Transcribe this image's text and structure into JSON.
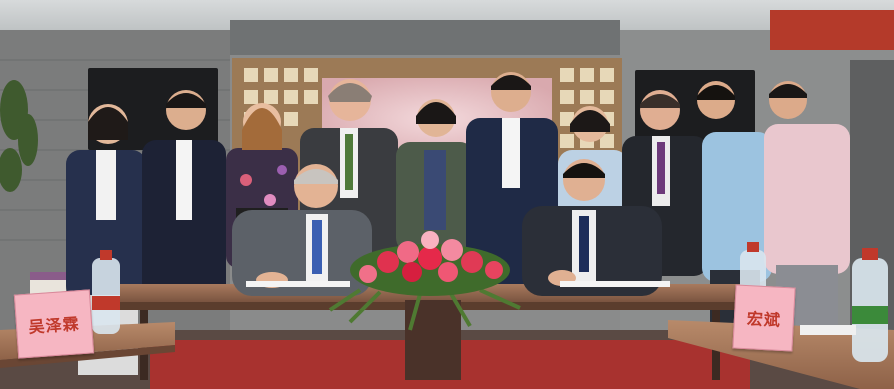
{
  "photo": {
    "nameplates": [
      {
        "text": "吴泽霖"
      },
      {
        "text": "宏斌"
      }
    ]
  }
}
